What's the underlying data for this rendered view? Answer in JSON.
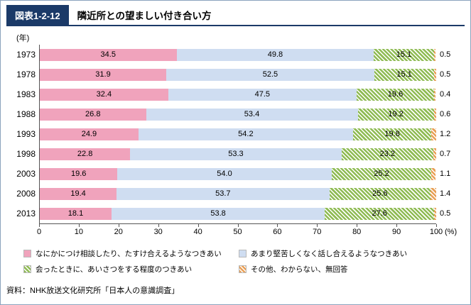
{
  "header": {
    "label": "図表1-2-12",
    "title": "隣近所との望ましい付き合い方"
  },
  "chart_data": {
    "type": "bar",
    "orientation": "horizontal",
    "stacked": true,
    "unit_y": "(年)",
    "unit_x": "(%)",
    "xlim": [
      0,
      100
    ],
    "x_ticks": [
      0,
      10,
      20,
      30,
      40,
      50,
      60,
      70,
      80,
      90,
      100
    ],
    "grid": false,
    "legend_position": "bottom",
    "categories": [
      "1973",
      "1978",
      "1983",
      "1988",
      "1993",
      "1998",
      "2003",
      "2008",
      "2013"
    ],
    "series": [
      {
        "name": "なにかにつけ相談したり、たすけ合えるようなつきあい",
        "color": "#f0a3bc",
        "hatch": false,
        "labels_outside": false,
        "values": [
          34.5,
          31.9,
          32.4,
          26.8,
          24.9,
          22.8,
          19.6,
          19.4,
          18.1
        ]
      },
      {
        "name": "あまり堅苦しくなく話し合えるようなつきあい",
        "color": "#cfddf1",
        "hatch": false,
        "labels_outside": false,
        "values": [
          49.8,
          52.5,
          47.5,
          53.4,
          54.2,
          53.3,
          54.0,
          53.7,
          53.8
        ]
      },
      {
        "name": "会ったときに、あいさつをする程度のつきあい",
        "color": "#8fbb54",
        "hatch": true,
        "labels_outside": false,
        "values": [
          15.1,
          15.1,
          19.6,
          19.2,
          19.8,
          23.2,
          25.2,
          25.6,
          27.6
        ]
      },
      {
        "name": "その他、わからない、無回答",
        "color": "#e9a057",
        "hatch": true,
        "labels_outside": true,
        "values": [
          0.5,
          0.5,
          0.4,
          0.6,
          1.2,
          0.7,
          1.1,
          1.4,
          0.5
        ]
      }
    ]
  },
  "source": "資料：NHK放送文化研究所「日本人の意識調査」"
}
